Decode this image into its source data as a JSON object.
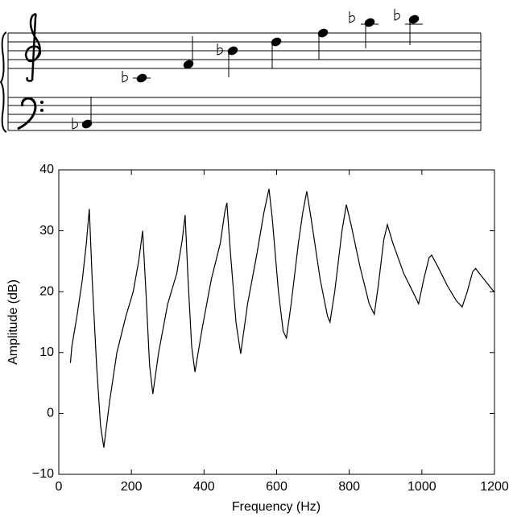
{
  "chart_data": {
    "type": "line",
    "xlabel": "Frequency (Hz)",
    "ylabel": "Amplitude (dB)",
    "x": [
      32,
      36,
      50,
      65,
      76,
      84,
      92,
      104,
      115,
      124,
      140,
      160,
      185,
      205,
      220,
      231,
      240,
      250,
      259,
      275,
      300,
      325,
      340,
      348,
      356,
      366,
      375,
      395,
      420,
      445,
      457,
      463,
      472,
      488,
      501,
      520,
      545,
      565,
      579,
      588,
      605,
      618,
      627,
      640,
      660,
      672,
      683,
      695,
      720,
      740,
      747,
      760,
      780,
      792,
      805,
      830,
      855,
      869,
      880,
      895,
      905,
      920,
      950,
      975,
      991,
      1005,
      1020,
      1027,
      1045,
      1070,
      1095,
      1111,
      1125,
      1140,
      1148,
      1165,
      1185,
      1200
    ],
    "series": [
      {
        "color": "#000000",
        "values": [
          8.3,
          11,
          16,
          22,
          28,
          33.6,
          22,
          8,
          -2,
          -5.6,
          2,
          10,
          16,
          20,
          25,
          30,
          20,
          8,
          3.2,
          10,
          18,
          23,
          28.5,
          32.6,
          22,
          11,
          6.8,
          14,
          22,
          28,
          33,
          34.6,
          27,
          15,
          9.8,
          18,
          26,
          33,
          36.9,
          32,
          20,
          13.5,
          12.4,
          18,
          28,
          33,
          36.5,
          32,
          22,
          16,
          15,
          20,
          30,
          34.3,
          31,
          24,
          18,
          16.3,
          21,
          28.5,
          31,
          28,
          23,
          20,
          18,
          22,
          25.6,
          26,
          24,
          21,
          18.5,
          17.5,
          20,
          23.3,
          23.8,
          22.5,
          21,
          19.9
        ]
      }
    ],
    "xlim": [
      0,
      1200
    ],
    "xticks": [
      0,
      200,
      400,
      600,
      800,
      1000,
      1200
    ],
    "ylim": [
      -10,
      40
    ],
    "yticks": [
      {
        "value": -10,
        "label": "−10"
      },
      0,
      10,
      20,
      30,
      40
    ],
    "grid": false
  }
}
